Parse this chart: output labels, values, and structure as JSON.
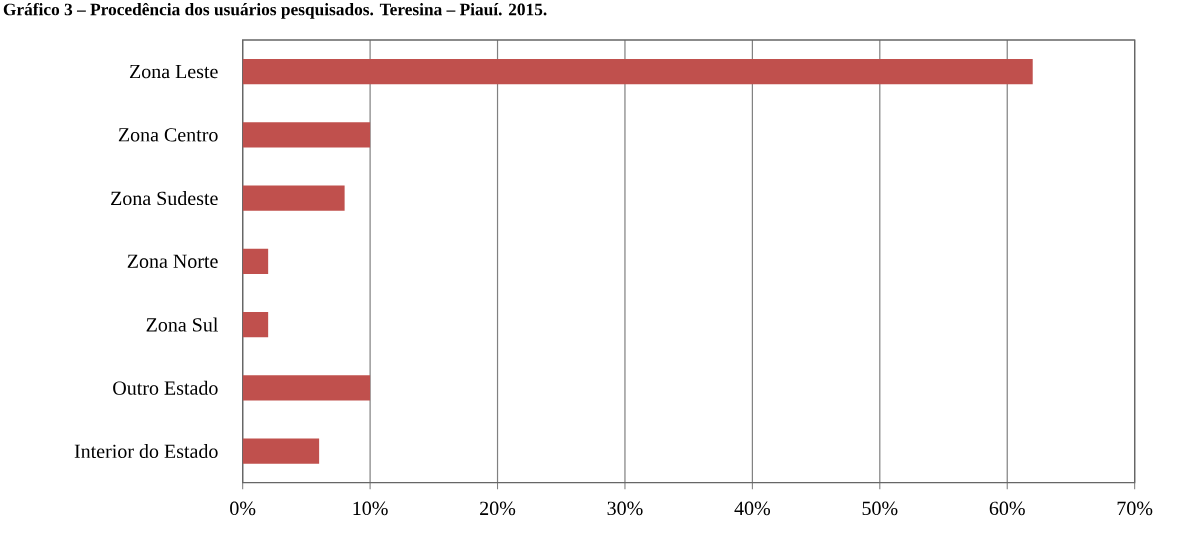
{
  "chart_data": {
    "type": "bar",
    "orientation": "horizontal",
    "title": "Gráfico 3 – Procedência dos usuários pesquisados. Teresina – Piauí. 2015.",
    "categories": [
      "Zona Leste",
      "Zona Centro",
      "Zona Sudeste",
      "Zona Norte",
      "Zona Sul",
      "Outro Estado",
      "Interior do Estado"
    ],
    "values": [
      62,
      10,
      8,
      2,
      2,
      10,
      6
    ],
    "color": "#c0504d",
    "xlim": [
      0,
      70
    ],
    "xticks": [
      {
        "value": 0,
        "label": "0%"
      },
      {
        "value": 10,
        "label": "10%"
      },
      {
        "value": 20,
        "label": "20%"
      },
      {
        "value": 30,
        "label": "30%"
      },
      {
        "value": 40,
        "label": "40%"
      },
      {
        "value": 50,
        "label": "50%"
      },
      {
        "value": 60,
        "label": "60%"
      },
      {
        "value": 70,
        "label": "70%"
      }
    ],
    "grid": "x"
  }
}
